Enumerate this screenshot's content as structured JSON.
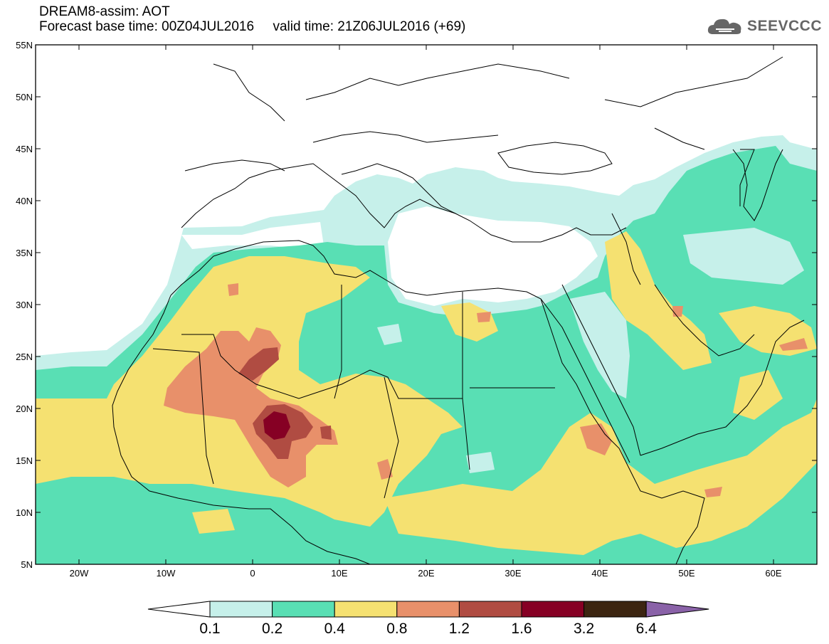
{
  "header": {
    "line1": "DREAM8-assim: AOT",
    "line2": "Forecast base time: 00Z04JUL2016     valid time: 21Z06JUL2016 (+69)",
    "logo_text": "SEEVCCC"
  },
  "map": {
    "lon_range": [
      -25,
      65
    ],
    "lat_range": [
      5,
      55
    ],
    "lon_ticks": [
      "20W",
      "10W",
      "0",
      "10E",
      "20E",
      "30E",
      "40E",
      "50E",
      "60E"
    ],
    "lat_ticks": [
      "55N",
      "50N",
      "45N",
      "40N",
      "35N",
      "30N",
      "25N",
      "20N",
      "15N",
      "10N",
      "5N"
    ]
  },
  "colorbar": {
    "labels": [
      "0.1",
      "0.2",
      "0.4",
      "0.8",
      "1.2",
      "1.6",
      "3.2",
      "6.4"
    ],
    "colors": [
      "#c6f0ea",
      "#59dfb4",
      "#f5e171",
      "#e8906a",
      "#b04c42",
      "#860024",
      "#3c2511",
      "#8a62a8"
    ],
    "under_color": "#ffffff"
  }
}
